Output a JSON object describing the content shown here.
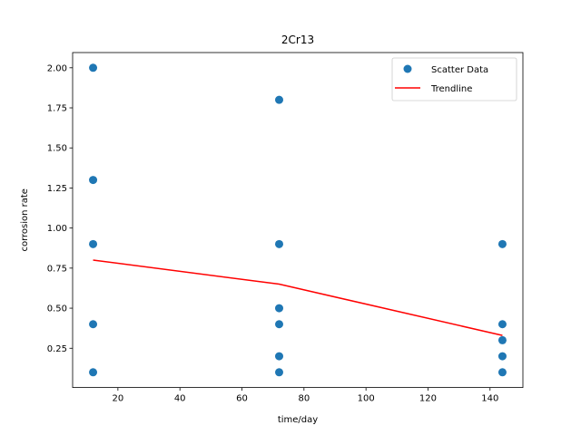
{
  "chart_data": {
    "type": "scatter",
    "title": "2Cr13",
    "xlabel": "time/day",
    "ylabel": "corrosion rate",
    "xlim": [
      5.4,
      150.6
    ],
    "ylim": [
      0.005,
      2.095
    ],
    "x_ticks": [
      20,
      40,
      60,
      80,
      100,
      120,
      140
    ],
    "y_ticks": [
      0.25,
      0.5,
      0.75,
      1.0,
      1.25,
      1.5,
      1.75,
      2.0
    ],
    "x_tick_labels": [
      "20",
      "40",
      "60",
      "80",
      "100",
      "120",
      "140"
    ],
    "y_tick_labels": [
      "0.25",
      "0.50",
      "0.75",
      "1.00",
      "1.25",
      "1.50",
      "1.75",
      "2.00"
    ],
    "grid": false,
    "legend_position": "top-right",
    "series": [
      {
        "name": "Scatter Data",
        "kind": "scatter",
        "color": "#1f77b4",
        "points": [
          [
            12,
            2.0
          ],
          [
            12,
            1.3
          ],
          [
            12,
            0.9
          ],
          [
            12,
            0.4
          ],
          [
            12,
            0.1
          ],
          [
            72,
            1.8
          ],
          [
            72,
            0.9
          ],
          [
            72,
            0.5
          ],
          [
            72,
            0.4
          ],
          [
            72,
            0.2
          ],
          [
            72,
            0.1
          ],
          [
            144,
            0.9
          ],
          [
            144,
            0.4
          ],
          [
            144,
            0.3
          ],
          [
            144,
            0.2
          ],
          [
            144,
            0.1
          ]
        ]
      },
      {
        "name": "Trendline",
        "kind": "line",
        "color": "#ff0000",
        "points": [
          [
            12,
            0.8
          ],
          [
            72,
            0.65
          ],
          [
            144,
            0.33
          ]
        ]
      }
    ]
  }
}
